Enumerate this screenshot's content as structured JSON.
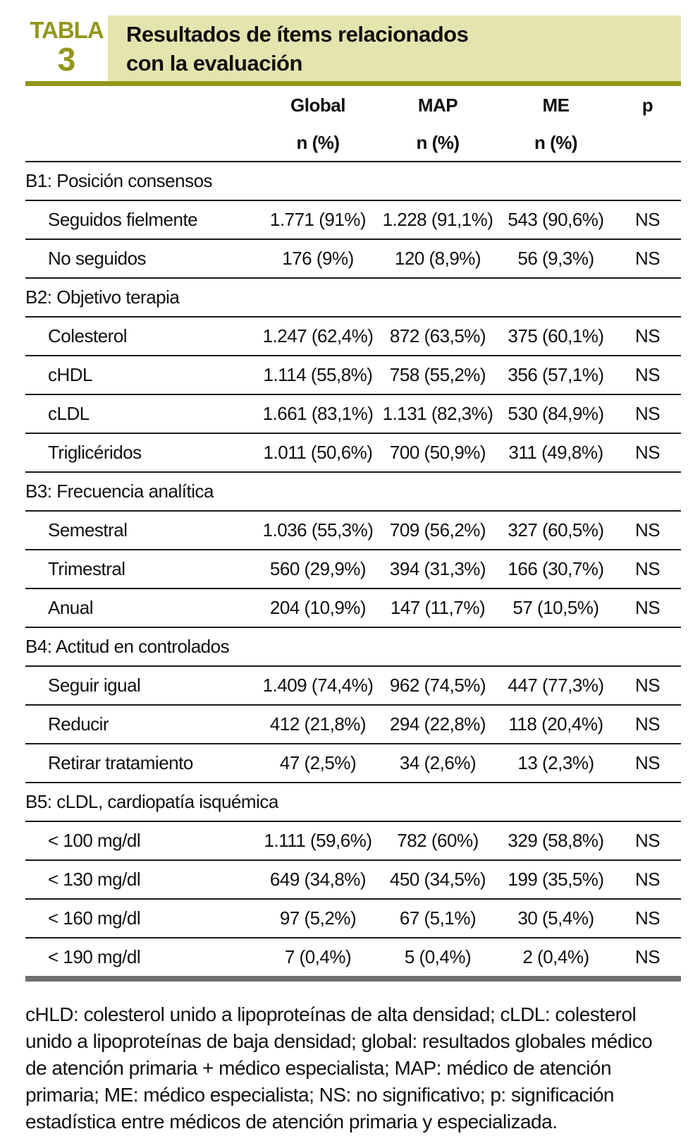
{
  "colors": {
    "olive_accent": "#93961b",
    "khaki_band": "#e4e4ae",
    "bottom_rule_gray": "#6f6f6f",
    "text": "#111111"
  },
  "header": {
    "tag_word": "TABLA",
    "tag_number": "3",
    "title_line1": "Resultados de ítems relacionados",
    "title_line2": "con la evaluación"
  },
  "columns": [
    {
      "label": "Global",
      "sub": "n (%)"
    },
    {
      "label": "MAP",
      "sub": "n (%)"
    },
    {
      "label": "ME",
      "sub": "n (%)"
    },
    {
      "label": "p",
      "sub": ""
    }
  ],
  "sections": [
    {
      "title": "B1: Posición consensos",
      "rows": [
        {
          "label": "Seguidos fielmente",
          "global": "1.771 (91%)",
          "map": "1.228 (91,1%)",
          "me": "543 (90,6%)",
          "p": "NS"
        },
        {
          "label": "No seguidos",
          "global": "176 (9%)",
          "map": "120 (8,9%)",
          "me": "56 (9,3%)",
          "p": "NS"
        }
      ]
    },
    {
      "title": "B2: Objetivo terapia",
      "rows": [
        {
          "label": "Colesterol",
          "global": "1.247 (62,4%)",
          "map": "872 (63,5%)",
          "me": "375 (60,1%)",
          "p": "NS"
        },
        {
          "label": "cHDL",
          "global": "1.114 (55,8%)",
          "map": "758 (55,2%)",
          "me": "356 (57,1%)",
          "p": "NS"
        },
        {
          "label": "cLDL",
          "global": "1.661 (83,1%)",
          "map": "1.131 (82,3%)",
          "me": "530 (84,9%)",
          "p": "NS"
        },
        {
          "label": "Triglicéridos",
          "global": "1.011 (50,6%)",
          "map": "700 (50,9%)",
          "me": "311 (49,8%)",
          "p": "NS"
        }
      ]
    },
    {
      "title": "B3: Frecuencia analítica",
      "rows": [
        {
          "label": "Semestral",
          "global": "1.036 (55,3%)",
          "map": "709 (56,2%)",
          "me": "327 (60,5%)",
          "p": "NS"
        },
        {
          "label": "Trimestral",
          "global": "560 (29,9%)",
          "map": "394 (31,3%)",
          "me": "166 (30,7%)",
          "p": "NS"
        },
        {
          "label": "Anual",
          "global": "204 (10,9%)",
          "map": "147 (11,7%)",
          "me": "57 (10,5%)",
          "p": "NS"
        }
      ]
    },
    {
      "title": "B4: Actitud en controlados",
      "rows": [
        {
          "label": "Seguir igual",
          "global": "1.409 (74,4%)",
          "map": "962 (74,5%)",
          "me": "447 (77,3%)",
          "p": "NS"
        },
        {
          "label": "Reducir",
          "global": "412 (21,8%)",
          "map": "294 (22,8%)",
          "me": "118 (20,4%)",
          "p": "NS"
        },
        {
          "label": "Retirar tratamiento",
          "global": "47 (2,5%)",
          "map": "34 (2,6%)",
          "me": "13 (2,3%)",
          "p": "NS"
        }
      ]
    },
    {
      "title": "B5: cLDL, cardiopatía isquémica",
      "rows": [
        {
          "label": "< 100 mg/dl",
          "global": "1.111 (59,6%)",
          "map": "782 (60%)",
          "me": "329 (58,8%)",
          "p": "NS"
        },
        {
          "label": "< 130 mg/dl",
          "global": "649 (34,8%)",
          "map": "450 (34,5%)",
          "me": "199 (35,5%)",
          "p": "NS"
        },
        {
          "label": "< 160 mg/dl",
          "global": "97 (5,2%)",
          "map": "67 (5,1%)",
          "me": "30 (5,4%)",
          "p": "NS"
        },
        {
          "label": "< 190 mg/dl",
          "global": "7 (0,4%)",
          "map": "5 (0,4%)",
          "me": "2 (0,4%)",
          "p": "NS"
        }
      ]
    }
  ],
  "footnote": "cHLD: colesterol unido a lipoproteínas de alta densidad; cLDL: colesterol unido a lipoproteínas de baja densidad; global: resultados globales médico de atención primaria + médico especialista; MAP: médico de atención primaria; ME: médico especialista; NS: no significativo; p: significación estadística entre médicos de atención primaria y especializada."
}
